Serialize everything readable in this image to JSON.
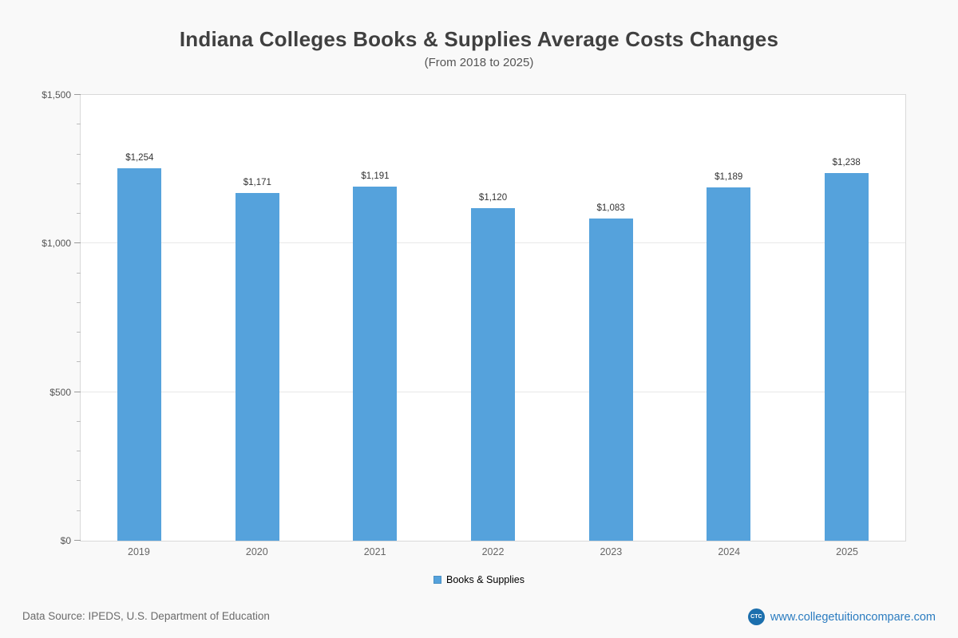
{
  "title": "Indiana Colleges  Books & Supplies Average Costs Changes",
  "subtitle": "(From 2018 to 2025)",
  "legend": {
    "label": "Books & Supplies",
    "color": "#55a2dc"
  },
  "footer": {
    "source": "Data Source: IPEDS, U.S. Department of Education",
    "logo": "CTC",
    "site": "www.collegetuitioncompare.com"
  },
  "chart_data": {
    "type": "bar",
    "title": "Indiana Colleges  Books & Supplies Average Costs Changes",
    "subtitle": "(From 2018 to 2025)",
    "categories": [
      "2019",
      "2020",
      "2021",
      "2022",
      "2023",
      "2024",
      "2025"
    ],
    "values": [
      1254,
      1171,
      1191,
      1120,
      1083,
      1189,
      1238
    ],
    "value_labels": [
      "$1,254",
      "$1,171",
      "$1,191",
      "$1,120",
      "$1,083",
      "$1,189",
      "$1,238"
    ],
    "series_name": "Books & Supplies",
    "bar_color": "#55a2dc",
    "xlabel": "",
    "ylabel": "",
    "ylim": [
      0,
      1500
    ],
    "yticks": [
      {
        "value": 0,
        "label": "$0"
      },
      {
        "value": 500,
        "label": "$500"
      },
      {
        "value": 1000,
        "label": "$1,000"
      },
      {
        "value": 1500,
        "label": "$1,500"
      }
    ],
    "minor_tick_step": 100,
    "grid": true,
    "legend_position": "bottom"
  }
}
